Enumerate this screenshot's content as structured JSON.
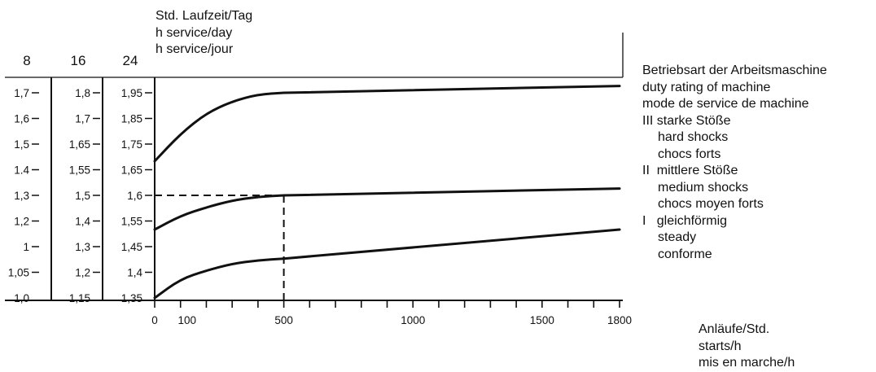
{
  "chart_data": {
    "type": "line",
    "title_lines": [
      "Std. Laufzeit/Tag",
      "h service/day",
      "h service/jour"
    ],
    "xlabel_lines": [
      "Anläufe/Std.",
      "starts/h",
      "mis en marche/h"
    ],
    "x_ticks": [
      {
        "value": 0,
        "label": "0"
      },
      {
        "value": 100,
        "label": "100"
      },
      {
        "value": 500,
        "label": "500"
      },
      {
        "value": 1000,
        "label": "1000"
      },
      {
        "value": 1500,
        "label": "1500"
      },
      {
        "value": 1800,
        "label": "1800"
      }
    ],
    "x_minor_ticks": [
      0,
      100,
      200,
      300,
      400,
      500,
      600,
      700,
      800,
      900,
      1000,
      1100,
      1200,
      1300,
      1400,
      1500,
      1600,
      1700,
      1800
    ],
    "xlim": [
      0,
      1800
    ],
    "y_axes": [
      {
        "header": "8",
        "labels": [
          "1,7",
          "1,6",
          "1,5",
          "1.4",
          "1,3",
          "1,2",
          "1",
          "1,05",
          "1,0"
        ]
      },
      {
        "header": "16",
        "labels": [
          "1,8",
          "1,7",
          "1,65",
          "1,55",
          "1,5",
          "1,4",
          "1,3",
          "1,2",
          "1,15"
        ]
      },
      {
        "header": "24",
        "labels": [
          "1,95",
          "1,85",
          "1,75",
          "1,65",
          "1,6",
          "1,55",
          "1,45",
          "1,4",
          "1,35"
        ]
      }
    ],
    "series": [
      {
        "name": "III starke Stöße",
        "points": [
          [
            0,
            1.75
          ],
          [
            100,
            1.83
          ],
          [
            200,
            1.89
          ],
          [
            300,
            1.925
          ],
          [
            400,
            1.945
          ],
          [
            500,
            1.95
          ],
          [
            1800,
            1.97
          ]
        ]
      },
      {
        "name": "II mittlere Stöße",
        "points": [
          [
            0,
            1.55
          ],
          [
            100,
            1.59
          ],
          [
            200,
            1.615
          ],
          [
            300,
            1.635
          ],
          [
            400,
            1.646
          ],
          [
            500,
            1.65
          ],
          [
            1800,
            1.67
          ]
        ]
      },
      {
        "name": "I gleichförmig",
        "points": [
          [
            0,
            1.35
          ],
          [
            100,
            1.405
          ],
          [
            200,
            1.43
          ],
          [
            300,
            1.45
          ],
          [
            400,
            1.46
          ],
          [
            500,
            1.465
          ],
          [
            1800,
            1.55
          ]
        ]
      }
    ],
    "reference_point": {
      "x": 500,
      "y": 1.65
    },
    "y_ref_range": [
      1.35,
      1.95
    ]
  },
  "side_legend": {
    "heading_lines": [
      "Betriebsart der Arbeitsmaschine",
      "duty rating of machine",
      "mode de service de machine"
    ],
    "groups": [
      {
        "first": "III starke Stöße",
        "rest": [
          "hard shocks",
          "chocs forts"
        ]
      },
      {
        "first": "II  mittlere Stöße",
        "rest": [
          "medium shocks",
          "chocs moyen forts"
        ]
      },
      {
        "first": "I   gleichförmig",
        "rest": [
          "steady",
          "conforme"
        ]
      }
    ]
  }
}
